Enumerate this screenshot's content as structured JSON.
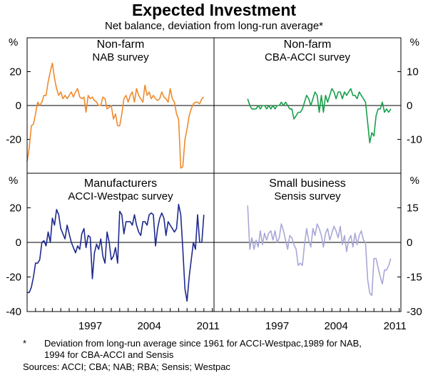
{
  "chart_data": {
    "type": "line",
    "title": "Expected Investment",
    "subtitle": "Net balance, deviation from long-run average*",
    "x_ticks": [
      "1997",
      "2004",
      "2011"
    ],
    "x_range": [
      1990.0,
      2012.2
    ],
    "panels": [
      {
        "position": "top-left",
        "title": "Non-farm",
        "subtitle": "NAB survey",
        "color": "#f08a2c",
        "axis": "left",
        "unit": "%",
        "ylim": [
          -40,
          40
        ],
        "yticks": [
          20,
          0,
          -20
        ],
        "series": [
          {
            "name": "Non-farm (NAB survey)",
            "x": [
              1990.0,
              1990.25,
              1990.5,
              1990.75,
              1991.0,
              1991.25,
              1991.5,
              1991.75,
              1992.0,
              1992.25,
              1992.5,
              1992.75,
              1993.0,
              1993.25,
              1993.5,
              1993.75,
              1994.0,
              1994.25,
              1994.5,
              1994.75,
              1995.0,
              1995.25,
              1995.5,
              1995.75,
              1996.0,
              1996.25,
              1996.5,
              1996.75,
              1997.0,
              1997.25,
              1997.5,
              1997.75,
              1998.0,
              1998.25,
              1998.5,
              1998.75,
              1999.0,
              1999.25,
              1999.5,
              1999.75,
              2000.0,
              2000.25,
              2000.5,
              2000.75,
              2001.0,
              2001.25,
              2001.5,
              2001.75,
              2002.0,
              2002.25,
              2002.5,
              2002.75,
              2003.0,
              2003.25,
              2003.5,
              2003.75,
              2004.0,
              2004.25,
              2004.5,
              2004.75,
              2005.0,
              2005.25,
              2005.5,
              2005.75,
              2006.0,
              2006.25,
              2006.5,
              2006.75,
              2007.0,
              2007.25,
              2007.5,
              2007.75,
              2008.0,
              2008.25,
              2008.5,
              2008.75,
              2009.0,
              2009.25,
              2009.5,
              2009.75,
              2010.0,
              2010.25,
              2010.5,
              2010.75,
              2011.0
            ],
            "values": [
              -33,
              -25,
              -12,
              -11,
              -5,
              2,
              0,
              2,
              6,
              6,
              14,
              20,
              25,
              16,
              10,
              6,
              8,
              4,
              6,
              4,
              6,
              8,
              5,
              8,
              10,
              5,
              4,
              5,
              -4,
              6,
              4,
              5,
              3,
              2,
              0,
              0,
              5,
              4,
              -2,
              -1,
              0,
              -8,
              -5,
              -12,
              -12,
              -5,
              4,
              6,
              2,
              6,
              8,
              2,
              10,
              6,
              4,
              2,
              12,
              6,
              8,
              4,
              6,
              4,
              3,
              4,
              8,
              5,
              4,
              2,
              10,
              4,
              2,
              -5,
              -8,
              -37,
              -36,
              -20,
              -14,
              -6,
              -2,
              1,
              2,
              2,
              1,
              4,
              5
            ]
          }
        ]
      },
      {
        "position": "top-right",
        "title": "Non-farm",
        "subtitle": "CBA-ACCI survey",
        "color": "#16a04a",
        "axis": "right",
        "unit": "%",
        "ylim": [
          -20,
          20
        ],
        "yticks": [
          10,
          0,
          -10
        ],
        "series": [
          {
            "name": "Non-farm (CBA-ACCI survey)",
            "x": [
              1994.0,
              1994.25,
              1994.5,
              1994.75,
              1995.0,
              1995.25,
              1995.5,
              1995.75,
              1996.0,
              1996.25,
              1996.5,
              1996.75,
              1997.0,
              1997.25,
              1997.5,
              1997.75,
              1998.0,
              1998.25,
              1998.5,
              1998.75,
              1999.0,
              1999.25,
              1999.5,
              1999.75,
              2000.0,
              2000.25,
              2000.5,
              2000.75,
              2001.0,
              2001.25,
              2001.5,
              2001.75,
              2002.0,
              2002.25,
              2002.5,
              2002.75,
              2003.0,
              2003.25,
              2003.5,
              2003.75,
              2004.0,
              2004.25,
              2004.5,
              2004.75,
              2005.0,
              2005.25,
              2005.5,
              2005.75,
              2006.0,
              2006.25,
              2006.5,
              2006.75,
              2007.0,
              2007.25,
              2007.5,
              2007.75,
              2008.0,
              2008.25,
              2008.5,
              2008.75,
              2009.0,
              2009.25,
              2009.5,
              2009.75,
              2010.0,
              2010.25,
              2010.5,
              2010.75,
              2011.0
            ],
            "values": [
              2,
              0,
              -1,
              -1,
              -1,
              0,
              -1,
              0,
              0,
              -1,
              0,
              -1,
              0,
              -1,
              0,
              0,
              1,
              0,
              1,
              0,
              -1,
              -1,
              -4,
              -3,
              -2,
              -2,
              -1,
              1,
              3,
              2,
              0,
              2,
              4,
              3,
              -2,
              3,
              -2,
              3,
              1,
              3,
              5,
              4,
              2,
              4,
              4,
              2,
              4,
              3,
              4,
              5,
              3,
              3,
              2,
              4,
              3,
              2,
              1,
              -5,
              -11,
              -8,
              -9,
              -3,
              -1,
              -1,
              1,
              -2,
              -1,
              -2,
              -1
            ]
          }
        ]
      },
      {
        "position": "bottom-left",
        "title": "Manufacturers",
        "subtitle": "ACCI-Westpac survey",
        "color": "#1e2a8f",
        "axis": "left",
        "unit": "%",
        "ylim": [
          -40,
          40
        ],
        "yticks": [
          20,
          0,
          -20,
          -40
        ],
        "series": [
          {
            "name": "Manufacturers (ACCI-Westpac survey)",
            "x": [
              1990.0,
              1990.25,
              1990.5,
              1990.75,
              1991.0,
              1991.25,
              1991.5,
              1991.75,
              1992.0,
              1992.25,
              1992.5,
              1992.75,
              1993.0,
              1993.25,
              1993.5,
              1993.75,
              1994.0,
              1994.25,
              1994.5,
              1994.75,
              1995.0,
              1995.25,
              1995.5,
              1995.75,
              1996.0,
              1996.25,
              1996.5,
              1996.75,
              1997.0,
              1997.25,
              1997.5,
              1997.75,
              1998.0,
              1998.25,
              1998.5,
              1998.75,
              1999.0,
              1999.25,
              1999.5,
              1999.75,
              2000.0,
              2000.25,
              2000.5,
              2000.75,
              2001.0,
              2001.25,
              2001.5,
              2001.75,
              2002.0,
              2002.25,
              2002.5,
              2002.75,
              2003.0,
              2003.25,
              2003.5,
              2003.75,
              2004.0,
              2004.25,
              2004.5,
              2004.75,
              2005.0,
              2005.25,
              2005.5,
              2005.75,
              2006.0,
              2006.25,
              2006.5,
              2006.75,
              2007.0,
              2007.25,
              2007.5,
              2007.75,
              2008.0,
              2008.25,
              2008.5,
              2008.75,
              2009.0,
              2009.25,
              2009.5,
              2009.75,
              2010.0,
              2010.25,
              2010.5,
              2010.75,
              2011.0
            ],
            "values": [
              -29,
              -29,
              -26,
              -20,
              -12,
              -12,
              -10,
              0,
              1,
              -2,
              6,
              0,
              14,
              10,
              19,
              16,
              8,
              5,
              2,
              10,
              5,
              0,
              -3,
              -6,
              -2,
              -4,
              5,
              8,
              -3,
              4,
              3,
              -21,
              -6,
              -1,
              -4,
              2,
              -8,
              -12,
              6,
              0,
              -10,
              -8,
              -3,
              -12,
              18,
              16,
              5,
              12,
              12,
              12,
              10,
              16,
              10,
              6,
              4,
              12,
              12,
              10,
              16,
              17,
              16,
              -2,
              8,
              14,
              17,
              14,
              4,
              12,
              10,
              8,
              6,
              8,
              22,
              16,
              -4,
              -27,
              -34,
              -20,
              -10,
              0,
              -4,
              16,
              0,
              0,
              16
            ]
          }
        ]
      },
      {
        "position": "bottom-right",
        "title": "Small business",
        "subtitle": "Sensis survey",
        "color": "#a8a8d8",
        "axis": "right",
        "unit": "%",
        "ylim": [
          -30,
          30
        ],
        "yticks": [
          15,
          0,
          -15,
          -30
        ],
        "series": [
          {
            "name": "Small business (Sensis survey)",
            "x": [
              1994.0,
              1994.25,
              1994.5,
              1994.75,
              1995.0,
              1995.25,
              1995.5,
              1995.75,
              1996.0,
              1996.25,
              1996.5,
              1996.75,
              1997.0,
              1997.25,
              1997.5,
              1997.75,
              1998.0,
              1998.25,
              1998.5,
              1998.75,
              1999.0,
              1999.25,
              1999.5,
              1999.75,
              2000.0,
              2000.25,
              2000.5,
              2000.75,
              2001.0,
              2001.25,
              2001.5,
              2001.75,
              2002.0,
              2002.25,
              2002.5,
              2002.75,
              2003.0,
              2003.25,
              2003.5,
              2003.75,
              2004.0,
              2004.25,
              2004.5,
              2004.75,
              2005.0,
              2005.25,
              2005.5,
              2005.75,
              2006.0,
              2006.25,
              2006.5,
              2006.75,
              2007.0,
              2007.25,
              2007.5,
              2007.75,
              2008.0,
              2008.25,
              2008.5,
              2008.75,
              2009.0,
              2009.25,
              2009.5,
              2009.75,
              2010.0,
              2010.25,
              2010.5,
              2010.75,
              2011.0
            ],
            "values": [
              16,
              -3,
              2,
              -3,
              1,
              -2,
              5,
              -1,
              4,
              1,
              4,
              5,
              1,
              5,
              0,
              2,
              8,
              5,
              1,
              -3,
              3,
              2,
              -1,
              -3,
              -10,
              -9,
              -10,
              -1,
              6,
              1,
              -2,
              6,
              3,
              8,
              6,
              3,
              -2,
              4,
              6,
              1,
              4,
              7,
              5,
              2,
              7,
              -1,
              3,
              -4,
              1,
              3,
              -2,
              4,
              -1,
              3,
              5,
              1,
              0,
              -16,
              -22,
              -23,
              -7,
              -7,
              -11,
              -15,
              -18,
              -12,
              -12,
              -10,
              -7
            ]
          }
        ]
      }
    ],
    "footnote_marker": "*",
    "footnote": "Deviation from long-run average since 1961 for ACCI-Westpac,1989 for NAB,",
    "footnote_cont": "1994 for CBA-ACCI and Sensis",
    "sources": "Sources: ACCI; CBA; NAB; RBA; Sensis; Westpac"
  }
}
